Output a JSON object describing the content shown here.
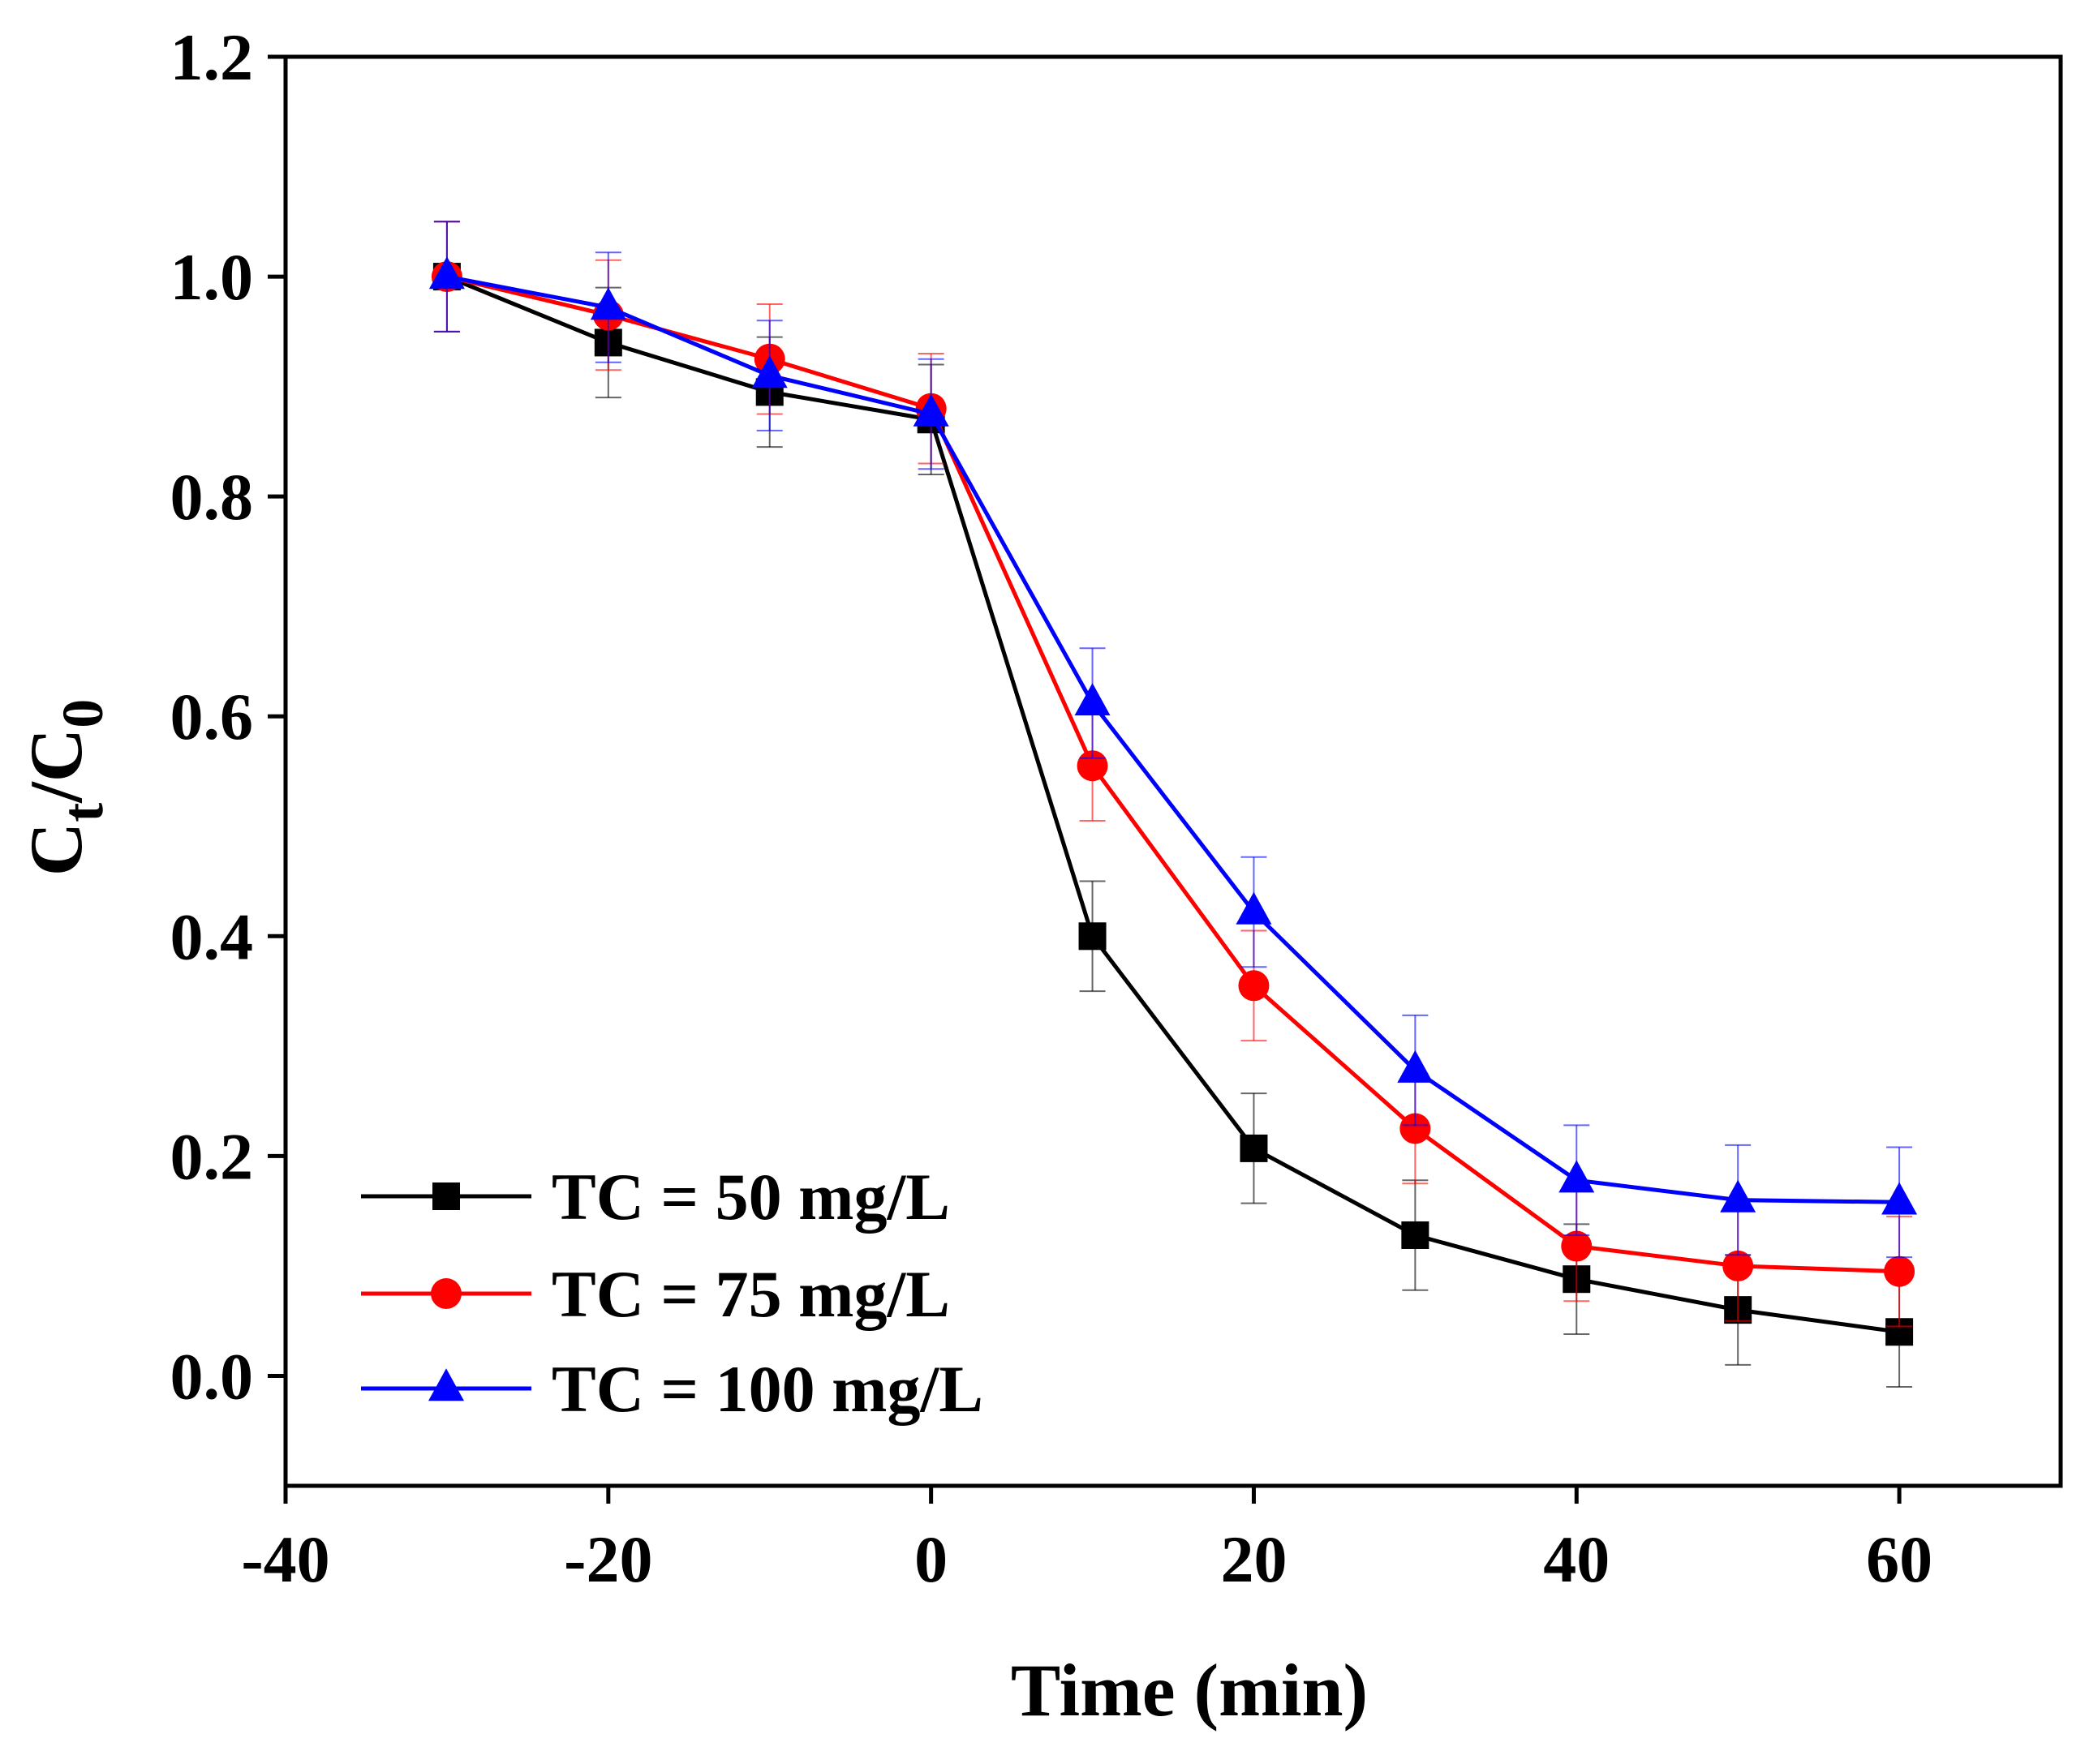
{
  "chart_data": {
    "type": "line",
    "title": "",
    "xlabel": "Time (min)",
    "ylabel_main": "C",
    "ylabel_sub1": "t",
    "ylabel_slash": "/C",
    "ylabel_sub2": "0",
    "xlim": [
      -40,
      70
    ],
    "ylim": [
      -0.1,
      1.2
    ],
    "x_ticks": [
      -40,
      -20,
      0,
      20,
      40,
      60
    ],
    "x_tick_labels": [
      "-40",
      "-20",
      "0",
      "20",
      "40",
      "60"
    ],
    "y_ticks": [
      0.0,
      0.2,
      0.4,
      0.6,
      0.8,
      1.0,
      1.2
    ],
    "y_tick_labels": [
      "0.0",
      "0.2",
      "0.4",
      "0.6",
      "0.8",
      "1.0",
      "1.2"
    ],
    "grid": false,
    "legend_position": "bottom-left",
    "x": [
      -30,
      -20,
      -10,
      0,
      10,
      20,
      30,
      40,
      50,
      60
    ],
    "series": [
      {
        "name": "TC = 50 mg/L",
        "color": "#000000",
        "marker": "square",
        "values": [
          1.0,
          0.94,
          0.895,
          0.87,
          0.4,
          0.207,
          0.128,
          0.088,
          0.06,
          0.04
        ],
        "errors": [
          0.05,
          0.05,
          0.05,
          0.05,
          0.05,
          0.05,
          0.05,
          0.05,
          0.05,
          0.05
        ]
      },
      {
        "name": "TC = 75 mg/L",
        "color": "#ff0000",
        "marker": "circle",
        "values": [
          1.0,
          0.965,
          0.925,
          0.88,
          0.555,
          0.355,
          0.225,
          0.118,
          0.1,
          0.095
        ],
        "errors": [
          0.05,
          0.05,
          0.05,
          0.05,
          0.05,
          0.05,
          0.05,
          0.05,
          0.05,
          0.05
        ]
      },
      {
        "name": "TC = 100 mg/L",
        "color": "#0000ff",
        "marker": "triangle",
        "values": [
          1.0,
          0.972,
          0.91,
          0.875,
          0.612,
          0.422,
          0.278,
          0.178,
          0.16,
          0.158
        ],
        "errors": [
          0.05,
          0.05,
          0.05,
          0.05,
          0.05,
          0.05,
          0.05,
          0.05,
          0.05,
          0.05
        ]
      }
    ]
  }
}
